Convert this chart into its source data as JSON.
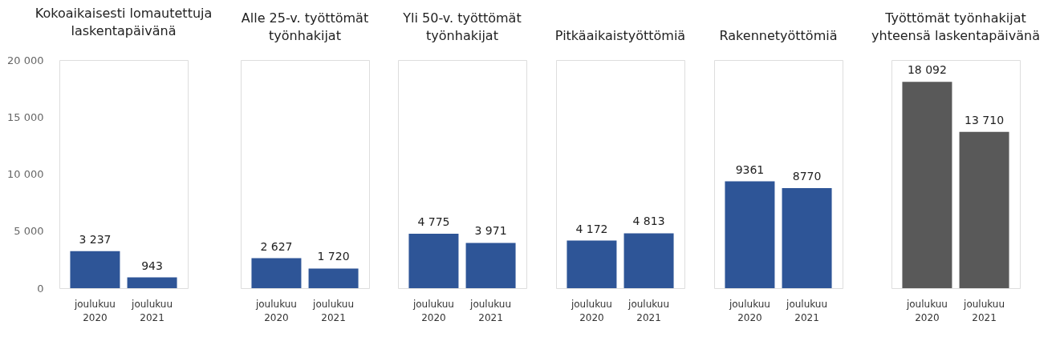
{
  "chart_data": [
    {
      "type": "bar",
      "title": "Kokoaikaisesti lomautettuja laskentapäivänä",
      "categories": [
        "joulukuu 2020",
        "joulukuu 2021"
      ],
      "values": [
        3237,
        943
      ],
      "value_labels": [
        "3 237",
        "943"
      ],
      "colors": [
        "#2e5597",
        "#2e5597"
      ],
      "ylim": [
        0,
        20000
      ],
      "yticks": [
        {
          "value": 0,
          "label": "0"
        },
        {
          "value": 5000,
          "label": "5 000"
        },
        {
          "value": 10000,
          "label": "10 000"
        },
        {
          "value": 15000,
          "label": "15 000"
        },
        {
          "value": 20000,
          "label": "20 000"
        }
      ],
      "grid": false
    },
    {
      "type": "bar",
      "title": "Alle 25-v. työttömät työnhakijat",
      "categories": [
        "joulukuu 2020",
        "joulukuu 2021"
      ],
      "values": [
        2627,
        1720
      ],
      "value_labels": [
        "2 627",
        "1 720"
      ],
      "colors": [
        "#2e5597",
        "#2e5597"
      ],
      "ylim": [
        0,
        20000
      ],
      "tick_labels": "x",
      "grid": false
    },
    {
      "type": "bar",
      "title": "Yli 50-v. työttömät työnhakijat",
      "categories": [
        "joulukuu 2020",
        "joulukuu 2021"
      ],
      "values": [
        4775,
        3971
      ],
      "value_labels": [
        "4 775",
        "3 971"
      ],
      "colors": [
        "#2e5597",
        "#2e5597"
      ],
      "ylim": [
        0,
        20000
      ],
      "tick_labels": "x",
      "grid": false
    },
    {
      "type": "bar",
      "title": "Pitkäaikaistyöttömiä",
      "categories": [
        "joulukuu 2020",
        "joulukuu 2021"
      ],
      "values": [
        4172,
        4813
      ],
      "value_labels": [
        "4 172",
        "4 813"
      ],
      "colors": [
        "#2e5597",
        "#2e5597"
      ],
      "ylim": [
        0,
        20000
      ],
      "tick_labels": "x",
      "grid": false
    },
    {
      "type": "bar",
      "title": "Rakennetyöttömiä",
      "categories": [
        "joulukuu 2020",
        "joulukuu 2021"
      ],
      "values": [
        9361,
        8770
      ],
      "value_labels": [
        "9361",
        "8770"
      ],
      "colors": [
        "#2e5597",
        "#2e5597"
      ],
      "ylim": [
        0,
        20000
      ],
      "tick_labels": "x",
      "grid": false
    },
    {
      "type": "bar",
      "title": "Työttömät työnhakijat yhteensä laskentapäivänä",
      "categories": [
        "joulukuu 2020",
        "joulukuu 2021"
      ],
      "values": [
        18092,
        13710
      ],
      "value_labels": [
        "18 092",
        "13 710"
      ],
      "colors": [
        "#595959",
        "#595959"
      ],
      "ylim": [
        0,
        20000
      ],
      "tick_labels": "x",
      "grid": false
    }
  ]
}
